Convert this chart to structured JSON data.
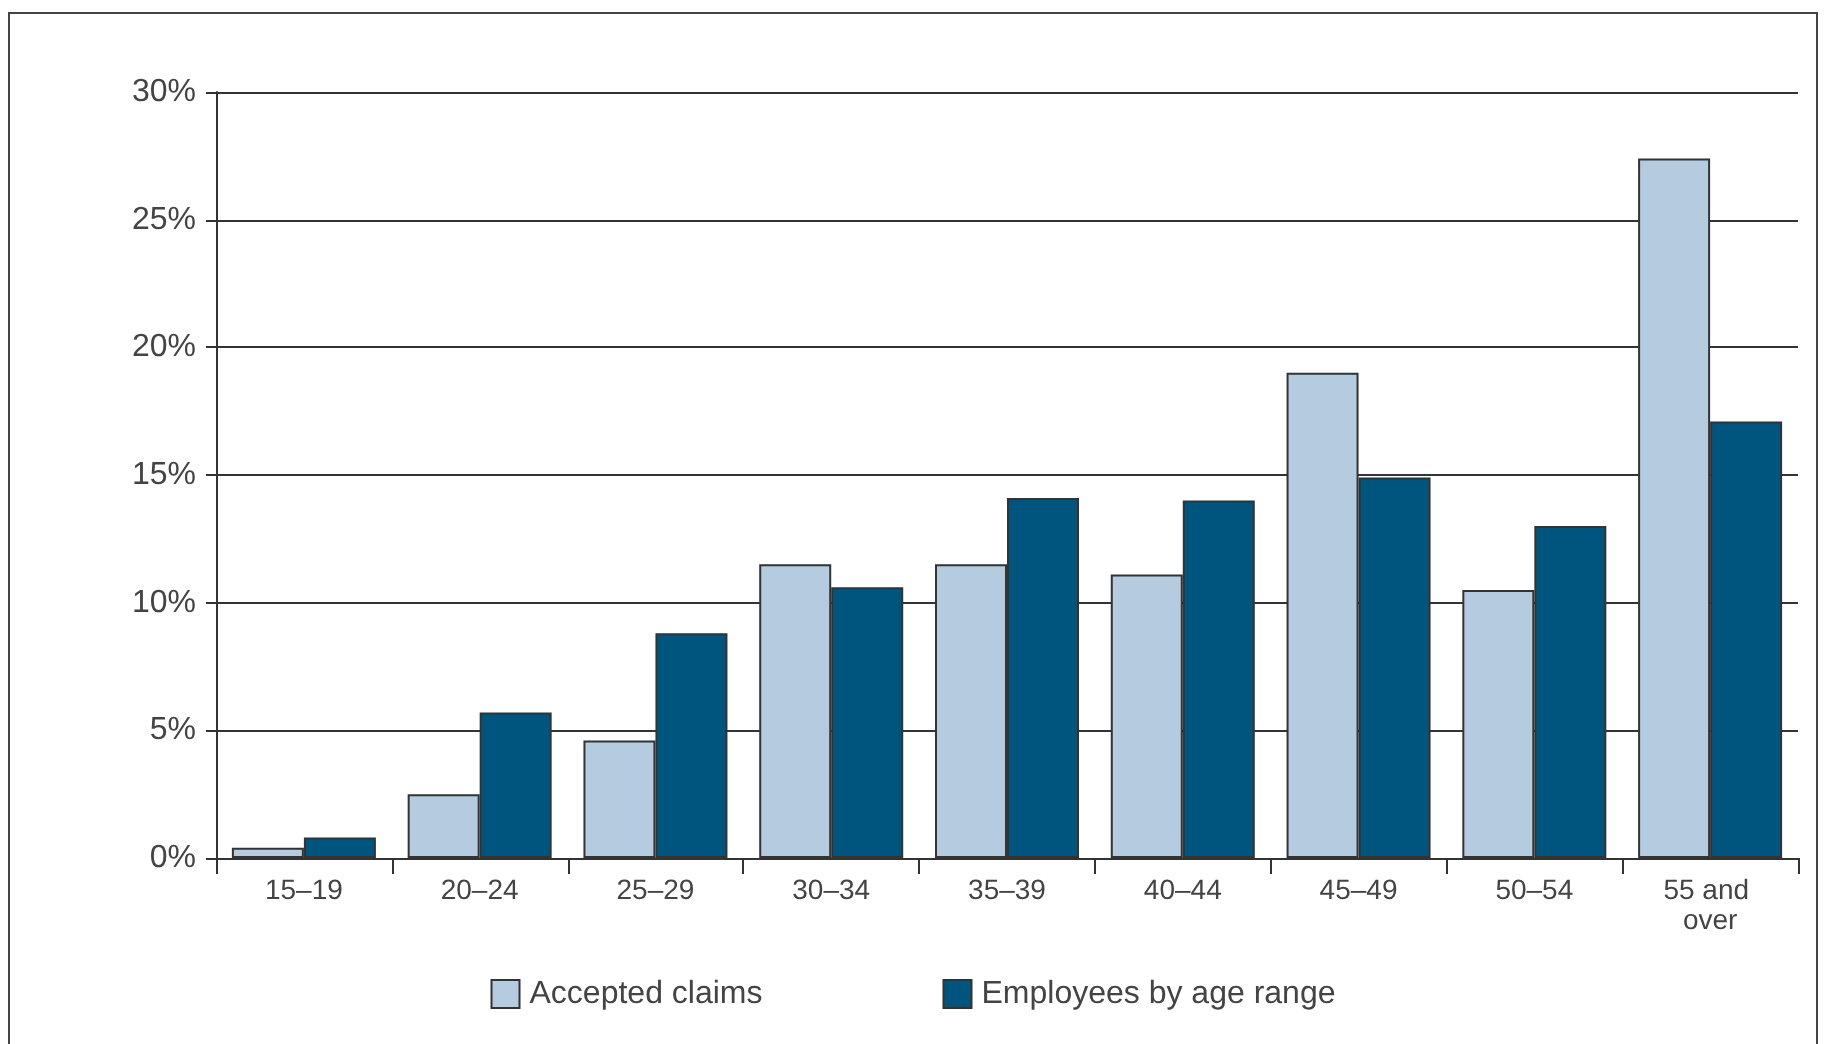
{
  "chart_data": {
    "type": "bar",
    "categories": [
      "15–19",
      "20–24",
      "25–29",
      "30–34",
      "35–39",
      "40–44",
      "45–49",
      "50–54",
      "55 and over"
    ],
    "series": [
      {
        "name": "Accepted claims",
        "color": "#b4cbe0",
        "values": [
          0.4,
          2.5,
          4.6,
          11.5,
          11.5,
          11.1,
          19.0,
          10.5,
          27.4
        ]
      },
      {
        "name": "Employees by age range",
        "color": "#00557f",
        "values": [
          0.8,
          5.7,
          8.8,
          10.6,
          14.1,
          14.0,
          14.9,
          13.0,
          17.1
        ]
      }
    ],
    "ylim": [
      0,
      30
    ],
    "yticks": [
      {
        "value": 0,
        "label": "0%"
      },
      {
        "value": 5,
        "label": "5%"
      },
      {
        "value": 10,
        "label": "10%"
      },
      {
        "value": 15,
        "label": "15%"
      },
      {
        "value": 20,
        "label": "20%"
      },
      {
        "value": 25,
        "label": "25%"
      },
      {
        "value": 30,
        "label": "30%"
      }
    ],
    "grid": "y",
    "legend": "bottom"
  }
}
